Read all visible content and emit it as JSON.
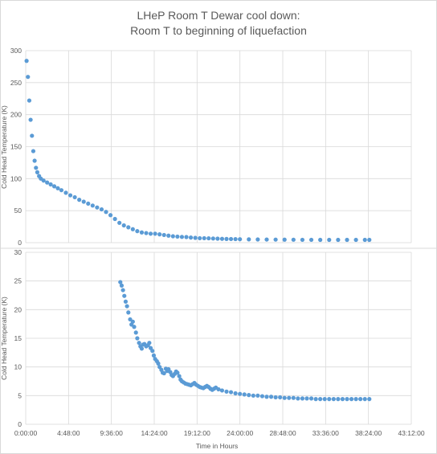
{
  "chart_data": {
    "title_line1": "LHeP Room T Dewar cool down:",
    "title_line2": "Room T to beginning of liquefaction",
    "xlabel": "Time in Hours",
    "colors": {
      "marker": "#5b9bd5",
      "grid": "#d9d9d9",
      "text": "#595959",
      "frame": "#d9d9d9"
    },
    "x_ticks": [
      "0:00:00",
      "4:48:00",
      "9:36:00",
      "14:24:00",
      "19:12:00",
      "24:00:00",
      "28:48:00",
      "33:36:00",
      "38:24:00",
      "43:12:00"
    ],
    "x_range_hours": [
      0,
      43.2
    ],
    "panels": [
      {
        "type": "scatter",
        "ylabel": "Cold Head Temperature (K)",
        "ylim": [
          0,
          300
        ],
        "y_ticks": [
          "0",
          "50",
          "100",
          "150",
          "200",
          "250",
          "300"
        ],
        "points": [
          [
            0.1,
            284
          ],
          [
            0.25,
            259
          ],
          [
            0.4,
            222
          ],
          [
            0.55,
            192
          ],
          [
            0.7,
            167
          ],
          [
            0.85,
            143
          ],
          [
            1.0,
            128
          ],
          [
            1.15,
            117
          ],
          [
            1.3,
            110
          ],
          [
            1.5,
            104
          ],
          [
            1.7,
            100
          ],
          [
            2.0,
            97
          ],
          [
            2.4,
            94
          ],
          [
            2.8,
            91
          ],
          [
            3.2,
            88
          ],
          [
            3.6,
            85
          ],
          [
            4.0,
            82
          ],
          [
            4.5,
            78
          ],
          [
            5.0,
            74
          ],
          [
            5.5,
            71
          ],
          [
            6.0,
            67
          ],
          [
            6.5,
            64
          ],
          [
            7.0,
            61
          ],
          [
            7.5,
            58
          ],
          [
            8.0,
            55
          ],
          [
            8.5,
            52
          ],
          [
            9.0,
            48
          ],
          [
            9.5,
            43
          ],
          [
            10.0,
            37
          ],
          [
            10.5,
            31
          ],
          [
            11.0,
            27
          ],
          [
            11.5,
            24
          ],
          [
            12.0,
            21
          ],
          [
            12.5,
            18
          ],
          [
            13.0,
            16
          ],
          [
            13.5,
            15
          ],
          [
            14.0,
            14
          ],
          [
            14.5,
            14
          ],
          [
            15.0,
            13
          ],
          [
            15.5,
            12
          ],
          [
            16.0,
            11
          ],
          [
            16.5,
            10
          ],
          [
            17.0,
            9.5
          ],
          [
            17.5,
            9
          ],
          [
            18.0,
            8.8
          ],
          [
            18.5,
            8
          ],
          [
            19.0,
            7.5
          ],
          [
            19.5,
            7
          ],
          [
            20.0,
            7
          ],
          [
            20.5,
            6.8
          ],
          [
            21.0,
            6.5
          ],
          [
            21.5,
            6.3
          ],
          [
            22.0,
            6
          ],
          [
            22.5,
            5.8
          ],
          [
            23.0,
            5.7
          ],
          [
            23.5,
            5.6
          ],
          [
            24.0,
            5.4
          ],
          [
            25.0,
            5.2
          ],
          [
            26.0,
            5.0
          ],
          [
            27.0,
            4.9
          ],
          [
            28.0,
            4.8
          ],
          [
            29.0,
            4.7
          ],
          [
            30.0,
            4.6
          ],
          [
            31.0,
            4.5
          ],
          [
            32.0,
            4.5
          ],
          [
            33.0,
            4.4
          ],
          [
            34.0,
            4.4
          ],
          [
            35.0,
            4.4
          ],
          [
            36.0,
            4.4
          ],
          [
            37.0,
            4.4
          ],
          [
            38.0,
            4.4
          ],
          [
            38.5,
            4.4
          ]
        ]
      },
      {
        "type": "scatter",
        "ylabel": "Cold Head Temperature (K)",
        "ylim": [
          0,
          30
        ],
        "y_ticks": [
          "0",
          "5",
          "10",
          "15",
          "20",
          "25",
          "30"
        ],
        "points": [
          [
            10.6,
            24.8
          ],
          [
            10.75,
            24.2
          ],
          [
            10.9,
            23.4
          ],
          [
            11.05,
            22.4
          ],
          [
            11.2,
            21.4
          ],
          [
            11.35,
            20.6
          ],
          [
            11.5,
            19.5
          ],
          [
            11.7,
            18.3
          ],
          [
            11.85,
            17.4
          ],
          [
            12.0,
            17.9
          ],
          [
            12.15,
            17.0
          ],
          [
            12.35,
            16.0
          ],
          [
            12.5,
            15.0
          ],
          [
            12.7,
            14.2
          ],
          [
            12.85,
            13.6
          ],
          [
            13.0,
            13.2
          ],
          [
            13.15,
            13.9
          ],
          [
            13.3,
            14.0
          ],
          [
            13.5,
            13.6
          ],
          [
            13.7,
            13.8
          ],
          [
            13.85,
            14.2
          ],
          [
            14.0,
            13.3
          ],
          [
            14.2,
            12.8
          ],
          [
            14.35,
            12.0
          ],
          [
            14.5,
            11.4
          ],
          [
            14.7,
            11.0
          ],
          [
            14.85,
            10.6
          ],
          [
            15.0,
            10.0
          ],
          [
            15.2,
            9.5
          ],
          [
            15.35,
            9.0
          ],
          [
            15.5,
            8.9
          ],
          [
            15.7,
            9.7
          ],
          [
            15.85,
            9.3
          ],
          [
            16.0,
            9.6
          ],
          [
            16.2,
            9.1
          ],
          [
            16.35,
            8.6
          ],
          [
            16.5,
            8.4
          ],
          [
            16.7,
            8.8
          ],
          [
            16.85,
            9.2
          ],
          [
            17.0,
            9.0
          ],
          [
            17.2,
            8.4
          ],
          [
            17.35,
            7.8
          ],
          [
            17.5,
            7.5
          ],
          [
            17.7,
            7.3
          ],
          [
            17.9,
            7.1
          ],
          [
            18.1,
            7.0
          ],
          [
            18.3,
            6.9
          ],
          [
            18.5,
            6.8
          ],
          [
            18.7,
            7.0
          ],
          [
            18.9,
            7.2
          ],
          [
            19.1,
            6.9
          ],
          [
            19.3,
            6.7
          ],
          [
            19.5,
            6.5
          ],
          [
            19.7,
            6.4
          ],
          [
            19.9,
            6.3
          ],
          [
            20.1,
            6.5
          ],
          [
            20.3,
            6.7
          ],
          [
            20.5,
            6.5
          ],
          [
            20.7,
            6.2
          ],
          [
            20.9,
            6.0
          ],
          [
            21.1,
            6.2
          ],
          [
            21.3,
            6.4
          ],
          [
            21.6,
            6.1
          ],
          [
            22.0,
            5.9
          ],
          [
            22.5,
            5.7
          ],
          [
            23.0,
            5.6
          ],
          [
            23.5,
            5.4
          ],
          [
            24.0,
            5.3
          ],
          [
            24.5,
            5.2
          ],
          [
            25.0,
            5.1
          ],
          [
            25.5,
            5.0
          ],
          [
            26.0,
            5.0
          ],
          [
            26.5,
            4.9
          ],
          [
            27.0,
            4.8
          ],
          [
            27.5,
            4.8
          ],
          [
            28.0,
            4.7
          ],
          [
            28.5,
            4.7
          ],
          [
            29.0,
            4.6
          ],
          [
            29.5,
            4.6
          ],
          [
            30.0,
            4.6
          ],
          [
            30.5,
            4.5
          ],
          [
            31.0,
            4.5
          ],
          [
            31.5,
            4.5
          ],
          [
            32.0,
            4.5
          ],
          [
            32.5,
            4.4
          ],
          [
            33.0,
            4.4
          ],
          [
            33.5,
            4.4
          ],
          [
            34.0,
            4.4
          ],
          [
            34.5,
            4.4
          ],
          [
            35.0,
            4.4
          ],
          [
            35.5,
            4.4
          ],
          [
            36.0,
            4.4
          ],
          [
            36.5,
            4.4
          ],
          [
            37.0,
            4.4
          ],
          [
            37.5,
            4.4
          ],
          [
            38.0,
            4.4
          ],
          [
            38.5,
            4.4
          ]
        ]
      }
    ]
  }
}
